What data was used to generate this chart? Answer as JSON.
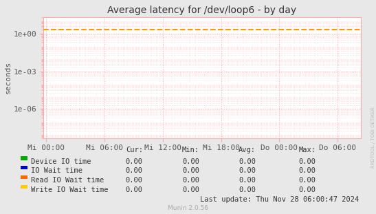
{
  "title": "Average latency for /dev/loop6 - by day",
  "ylabel": "seconds",
  "background_color": "#e8e8e8",
  "plot_bg_color": "#ffffff",
  "grid_color_major": "#ffaaaa",
  "grid_color_minor": "#ffcccc",
  "border_color": "#ffaaaa",
  "x_ticks_labels": [
    "Mi 00:00",
    "Mi 06:00",
    "Mi 12:00",
    "Mi 18:00",
    "Do 00:00",
    "Do 06:00"
  ],
  "dashed_line_value": 2.0,
  "dashed_line_color": "#ff9900",
  "legend_entries": [
    {
      "label": "Device IO time",
      "color": "#00aa00"
    },
    {
      "label": "IO Wait time",
      "color": "#0000cc"
    },
    {
      "label": "Read IO Wait time",
      "color": "#ff6600"
    },
    {
      "label": "Write IO Wait time",
      "color": "#ffcc00"
    }
  ],
  "table_headers": [
    "Cur:",
    "Min:",
    "Avg:",
    "Max:"
  ],
  "table_rows": [
    [
      "Device IO time",
      "0.00",
      "0.00",
      "0.00",
      "0.00"
    ],
    [
      "IO Wait time",
      "0.00",
      "0.00",
      "0.00",
      "0.00"
    ],
    [
      "Read IO Wait time",
      "0.00",
      "0.00",
      "0.00",
      "0.00"
    ],
    [
      "Write IO Wait time",
      "0.00",
      "0.00",
      "0.00",
      "0.00"
    ]
  ],
  "footer_text": "Last update: Thu Nov 28 06:00:47 2024",
  "munin_text": "Munin 2.0.56",
  "rrdtool_text": "RRDTOOL / TOBI OETIKER",
  "title_fontsize": 10,
  "axis_fontsize": 8,
  "table_fontsize": 7.5
}
